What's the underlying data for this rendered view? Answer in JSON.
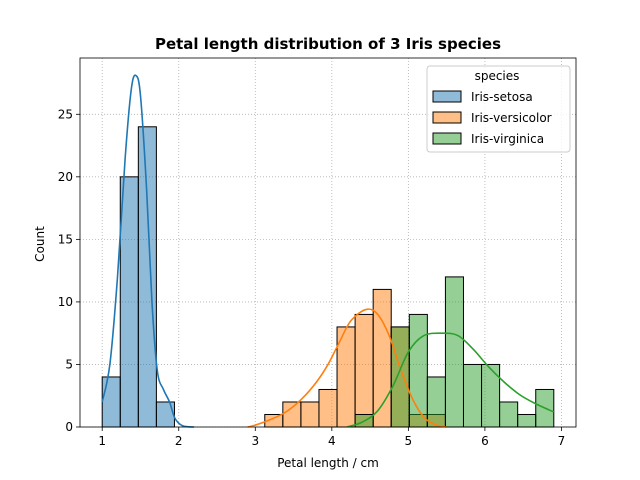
{
  "chart_data": {
    "type": "histogram",
    "title": "Petal length distribution of 3 Iris species",
    "xlabel": "Petal length / cm",
    "ylabel": "Count",
    "xlim": [
      0.71,
      7.19
    ],
    "ylim": [
      0,
      29.5
    ],
    "xticks": [
      "1",
      "2",
      "3",
      "4",
      "5",
      "6",
      "7"
    ],
    "yticks": [
      "0",
      "5",
      "10",
      "15",
      "20",
      "25"
    ],
    "grid": true,
    "legend": {
      "title": "species",
      "placement": "top-right"
    },
    "bin_edges": [
      1.0,
      1.236,
      1.472,
      1.708,
      1.944,
      2.18,
      2.416,
      2.652,
      2.888,
      3.124,
      3.36,
      3.596,
      3.832,
      4.068,
      4.304,
      4.54,
      4.776,
      5.012,
      5.248,
      5.484,
      5.72,
      5.956,
      6.192,
      6.428,
      6.664,
      6.9
    ],
    "series": [
      {
        "name": "Iris-setosa",
        "color": "#1f77b4",
        "counts": [
          4,
          20,
          24,
          2,
          0,
          0,
          0,
          0,
          0,
          0,
          0,
          0,
          0,
          0,
          0,
          0,
          0,
          0,
          0,
          0,
          0,
          0,
          0,
          0,
          0
        ],
        "kde": [
          [
            1.0,
            2.0
          ],
          [
            1.1,
            5.0
          ],
          [
            1.2,
            12.0
          ],
          [
            1.3,
            21.5
          ],
          [
            1.38,
            27.0
          ],
          [
            1.44,
            28.1
          ],
          [
            1.5,
            26.5
          ],
          [
            1.58,
            19.0
          ],
          [
            1.65,
            10.0
          ],
          [
            1.72,
            4.5
          ],
          [
            1.8,
            3.0
          ],
          [
            1.88,
            2.0
          ],
          [
            1.95,
            0.7
          ],
          [
            2.05,
            0.1
          ],
          [
            2.2,
            0.0
          ]
        ]
      },
      {
        "name": "Iris-versicolor",
        "color": "#ff7f0e",
        "counts": [
          0,
          0,
          0,
          0,
          0,
          0,
          0,
          0,
          0,
          1,
          2,
          2,
          3,
          8,
          9,
          11,
          8,
          1,
          1,
          0,
          0,
          0,
          0,
          0,
          0
        ],
        "kde": [
          [
            2.9,
            0.0
          ],
          [
            3.0,
            0.15
          ],
          [
            3.2,
            0.6
          ],
          [
            3.4,
            1.2
          ],
          [
            3.6,
            2.2
          ],
          [
            3.8,
            3.6
          ],
          [
            3.95,
            5.0
          ],
          [
            4.1,
            6.8
          ],
          [
            4.25,
            8.5
          ],
          [
            4.45,
            9.4
          ],
          [
            4.6,
            9.0
          ],
          [
            4.75,
            7.3
          ],
          [
            4.9,
            4.6
          ],
          [
            5.05,
            2.3
          ],
          [
            5.2,
            0.8
          ],
          [
            5.35,
            0.2
          ],
          [
            5.5,
            0.0
          ]
        ]
      },
      {
        "name": "Iris-virginica",
        "color": "#2ca02c",
        "counts": [
          0,
          0,
          0,
          0,
          0,
          0,
          0,
          0,
          0,
          0,
          0,
          0,
          0,
          0,
          1,
          0,
          8,
          9,
          4,
          12,
          5,
          5,
          2,
          1,
          3
        ],
        "kde": [
          [
            4.2,
            0.0
          ],
          [
            4.4,
            0.4
          ],
          [
            4.6,
            1.3
          ],
          [
            4.8,
            3.3
          ],
          [
            5.0,
            6.0
          ],
          [
            5.2,
            7.3
          ],
          [
            5.45,
            7.5
          ],
          [
            5.65,
            7.3
          ],
          [
            5.85,
            6.2
          ],
          [
            6.05,
            4.8
          ],
          [
            6.25,
            3.6
          ],
          [
            6.45,
            2.6
          ],
          [
            6.65,
            1.9
          ],
          [
            6.9,
            1.2
          ]
        ]
      }
    ]
  }
}
